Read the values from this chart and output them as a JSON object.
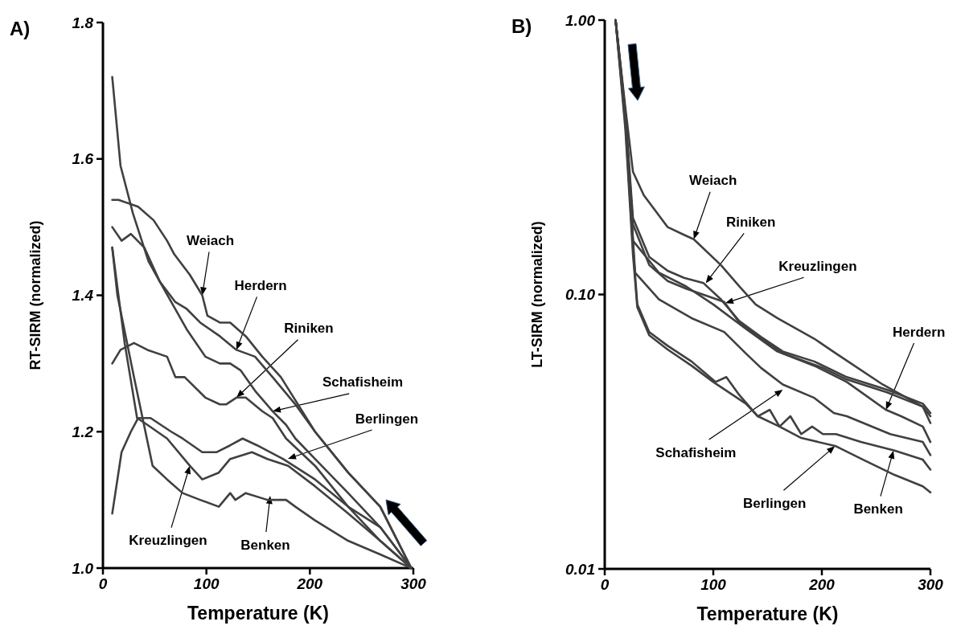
{
  "chart_data": [
    {
      "type": "line",
      "title": "A)",
      "xlabel": "Temperature (K)",
      "ylabel": "RT-SIRM (normalized)",
      "xlim": [
        0,
        300
      ],
      "xticks": [
        0,
        100,
        200,
        300
      ],
      "ylim": [
        1,
        1.8
      ],
      "yticks": [
        {
          "value": 1,
          "label": "1.0"
        },
        1.2,
        1.4,
        1.6,
        1.8
      ],
      "series": [
        {
          "color": "#404040",
          "x": [
            9,
            15,
            34,
            49,
            62,
            69,
            84,
            96,
            101,
            113,
            123,
            138,
            154,
            172,
            205,
            237,
            268,
            298
          ],
          "values": [
            1.54,
            1.54,
            1.53,
            1.51,
            1.48,
            1.46,
            1.43,
            1.4,
            1.37,
            1.36,
            1.36,
            1.34,
            1.31,
            1.28,
            1.2,
            1.14,
            1.09,
            1.0
          ]
        },
        {
          "color": "#404040",
          "x": [
            9,
            17,
            29,
            44,
            55,
            70,
            81,
            94,
            113,
            129,
            147,
            164,
            186,
            205,
            237,
            268,
            298
          ],
          "values": [
            1.72,
            1.59,
            1.52,
            1.45,
            1.42,
            1.39,
            1.38,
            1.36,
            1.34,
            1.32,
            1.31,
            1.28,
            1.24,
            1.2,
            1.14,
            1.09,
            1.0
          ]
        },
        {
          "color": "#404040",
          "x": [
            9,
            17,
            30,
            43,
            62,
            70,
            79,
            99,
            113,
            119,
            129,
            138,
            154,
            164,
            177,
            205,
            237,
            268,
            298
          ],
          "values": [
            1.3,
            1.32,
            1.33,
            1.32,
            1.31,
            1.28,
            1.28,
            1.25,
            1.24,
            1.24,
            1.25,
            1.25,
            1.23,
            1.22,
            1.19,
            1.15,
            1.09,
            1.06,
            1.0
          ]
        },
        {
          "color": "#404040",
          "x": [
            9,
            18,
            27,
            40,
            55,
            81,
            99,
            113,
            123,
            133,
            147,
            164,
            177,
            186,
            205,
            237,
            268,
            298
          ],
          "values": [
            1.5,
            1.48,
            1.49,
            1.47,
            1.42,
            1.35,
            1.31,
            1.3,
            1.3,
            1.29,
            1.26,
            1.23,
            1.21,
            1.19,
            1.16,
            1.11,
            1.06,
            1.0
          ]
        },
        {
          "color": "#404040",
          "x": [
            9,
            18,
            27,
            34,
            46,
            66,
            77,
            96,
            110,
            123,
            135,
            149,
            174,
            205,
            237,
            268,
            298
          ],
          "values": [
            1.08,
            1.17,
            1.2,
            1.22,
            1.22,
            1.2,
            1.19,
            1.17,
            1.17,
            1.18,
            1.19,
            1.18,
            1.16,
            1.13,
            1.09,
            1.04,
            1.0
          ]
        },
        {
          "color": "#404040",
          "x": [
            9,
            21,
            33,
            43,
            62,
            84,
            96,
            112,
            123,
            144,
            159,
            179,
            205,
            237,
            268,
            298
          ],
          "values": [
            1.47,
            1.33,
            1.22,
            1.21,
            1.19,
            1.15,
            1.13,
            1.14,
            1.16,
            1.17,
            1.16,
            1.15,
            1.12,
            1.08,
            1.04,
            1.0
          ]
        },
        {
          "color": "#404040",
          "x": [
            9,
            14,
            30,
            48,
            62,
            77,
            94,
            112,
            123,
            128,
            138,
            159,
            177,
            186,
            205,
            237,
            268,
            298
          ],
          "values": [
            1.47,
            1.4,
            1.28,
            1.15,
            1.13,
            1.11,
            1.1,
            1.09,
            1.11,
            1.1,
            1.11,
            1.1,
            1.1,
            1.09,
            1.07,
            1.04,
            1.02,
            1.0
          ]
        }
      ],
      "annotations": [
        "Weiach",
        "Herdern",
        "Riniken",
        "Schafisheim",
        "Berlingen",
        "Kreuzlingen",
        "Benken"
      ]
    },
    {
      "type": "line",
      "title": "B)",
      "xlabel": "Temperature (K)",
      "ylabel": "LT-SIRM (normalized)",
      "xlim": [
        0,
        300
      ],
      "xticks": [
        0,
        100,
        200,
        300
      ],
      "ylim": [
        0.01,
        1
      ],
      "yticks": [
        {
          "value": 0.01,
          "label": "0.01"
        },
        {
          "value": 0.1,
          "label": "0.10"
        },
        {
          "value": 1,
          "label": "1.00"
        }
      ],
      "log": true,
      "series": [
        {
          "color": "#404040",
          "x": [
            10,
            19,
            26,
            36,
            58,
            73,
            82,
            107,
            124,
            139,
            159,
            193,
            213,
            256,
            293,
            300
          ],
          "values": [
            1.0,
            0.48,
            0.28,
            0.23,
            0.176,
            0.165,
            0.159,
            0.128,
            0.107,
            0.092,
            0.082,
            0.069,
            0.061,
            0.047,
            0.039,
            0.036
          ]
        },
        {
          "color": "#404040",
          "x": [
            10,
            19,
            26,
            41,
            58,
            73,
            91,
            107,
            124,
            144,
            164,
            193,
            223,
            260,
            293,
            300
          ],
          "values": [
            1.0,
            0.46,
            0.19,
            0.137,
            0.122,
            0.115,
            0.11,
            0.096,
            0.08,
            0.07,
            0.062,
            0.057,
            0.05,
            0.045,
            0.04,
            0.037
          ]
        },
        {
          "color": "#404040",
          "x": [
            10,
            19,
            26,
            41,
            58,
            75,
            110,
            124,
            144,
            164,
            201,
            223,
            260,
            293,
            300
          ],
          "values": [
            1.0,
            0.46,
            0.18,
            0.128,
            0.112,
            0.105,
            0.094,
            0.079,
            0.069,
            0.061,
            0.054,
            0.049,
            0.044,
            0.039,
            0.034
          ]
        },
        {
          "color": "#404040",
          "x": [
            10,
            19,
            26,
            50,
            75,
            100,
            130,
            159,
            193,
            223,
            259,
            273,
            293,
            300
          ],
          "values": [
            1.0,
            0.45,
            0.157,
            0.12,
            0.107,
            0.092,
            0.075,
            0.062,
            0.055,
            0.048,
            0.038,
            0.036,
            0.033,
            0.029
          ]
        },
        {
          "color": "#404040",
          "x": [
            10,
            19,
            28,
            50,
            80,
            110,
            130,
            144,
            164,
            193,
            211,
            223,
            263,
            293,
            300
          ],
          "values": [
            1.0,
            0.44,
            0.12,
            0.096,
            0.082,
            0.073,
            0.061,
            0.054,
            0.047,
            0.042,
            0.037,
            0.036,
            0.031,
            0.029,
            0.026
          ]
        },
        {
          "color": "#404040",
          "x": [
            10,
            19,
            26,
            30,
            41,
            58,
            80,
            102,
            112,
            124,
            141,
            152,
            161,
            171,
            181,
            191,
            201,
            213,
            236,
            267,
            293,
            300
          ],
          "values": [
            1.0,
            0.42,
            0.15,
            0.092,
            0.073,
            0.065,
            0.057,
            0.048,
            0.05,
            0.043,
            0.036,
            0.038,
            0.033,
            0.036,
            0.031,
            0.033,
            0.031,
            0.031,
            0.029,
            0.027,
            0.025,
            0.023
          ]
        },
        {
          "color": "#404040",
          "x": [
            10,
            19,
            26,
            30,
            41,
            58,
            80,
            100,
            130,
            141,
            161,
            181,
            213,
            238,
            267,
            293,
            300
          ],
          "values": [
            1.0,
            0.4,
            0.14,
            0.09,
            0.071,
            0.063,
            0.055,
            0.048,
            0.04,
            0.036,
            0.033,
            0.03,
            0.028,
            0.025,
            0.022,
            0.02,
            0.019
          ]
        }
      ],
      "annotations": [
        "Weiach",
        "Riniken",
        "Kreuzlingen",
        "Herdern",
        "Schafisheim",
        "Berlingen",
        "Benken"
      ]
    }
  ]
}
